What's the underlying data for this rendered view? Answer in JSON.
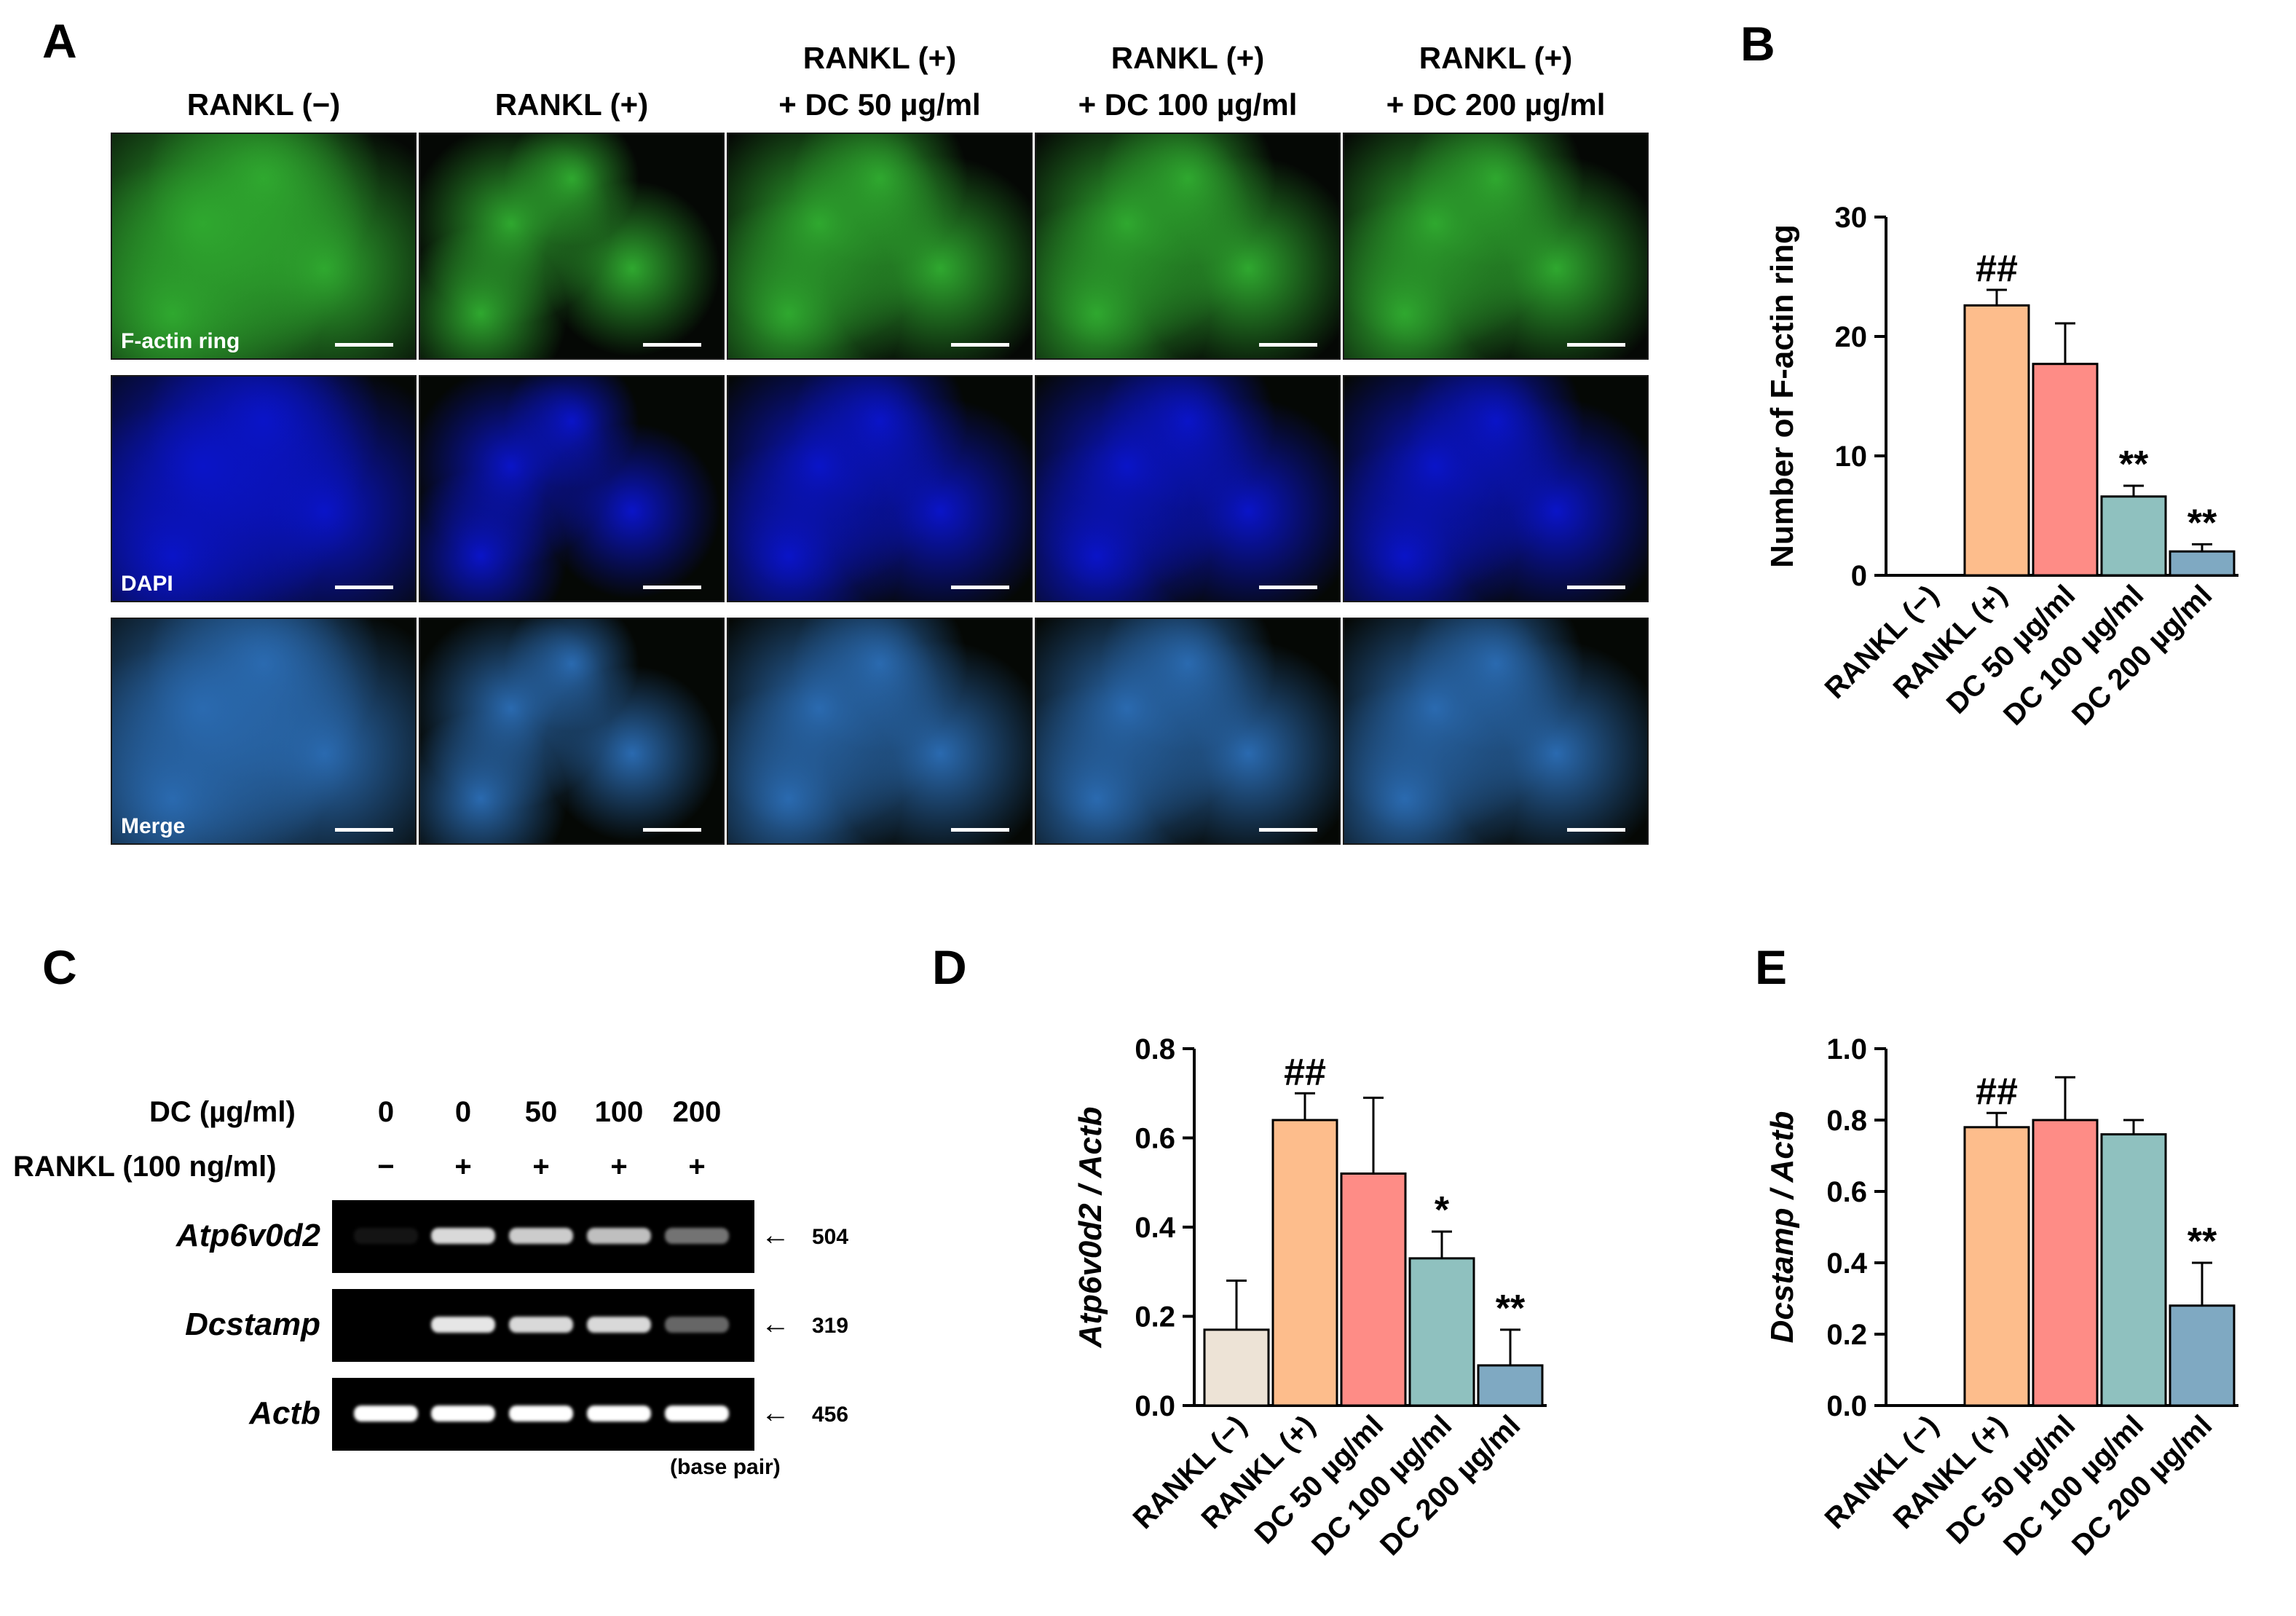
{
  "panel_letters": {
    "a": "A",
    "b": "B",
    "c": "C",
    "d": "D",
    "e": "E"
  },
  "panel_a": {
    "columns": [
      {
        "line1": "",
        "line2": "RANKL (−)"
      },
      {
        "line1": "",
        "line2": "RANKL (+)"
      },
      {
        "line1": "RANKL (+)",
        "line2": "+ DC 50 µg/ml"
      },
      {
        "line1": "RANKL (+)",
        "line2": "+ DC 100 µg/ml"
      },
      {
        "line1": "RANKL (+)",
        "line2": "+ DC 200 µg/ml"
      }
    ],
    "rows": [
      {
        "label": "F-actin ring",
        "color": "#2fa82f"
      },
      {
        "label": "DAPI",
        "color": "#0a14c8"
      },
      {
        "label": "Merge",
        "color": "#2a6ab0"
      }
    ]
  },
  "panel_c": {
    "dc_label": "DC (µg/ml)",
    "rankl_label": "RANKL (100 ng/ml)",
    "dc_values": [
      "0",
      "0",
      "50",
      "100",
      "200"
    ],
    "rankl_values": [
      "−",
      "+",
      "+",
      "+",
      "+"
    ],
    "genes": [
      {
        "name": "Atp6v0d2",
        "bp": "504",
        "intensities": [
          0.08,
          0.85,
          0.8,
          0.75,
          0.45
        ]
      },
      {
        "name": "Dcstamp",
        "bp": "319",
        "intensities": [
          0.0,
          0.9,
          0.85,
          0.85,
          0.4
        ]
      },
      {
        "name": "Actb",
        "bp": "456",
        "intensities": [
          1.0,
          1.0,
          1.0,
          1.0,
          1.0
        ]
      }
    ],
    "base_pair_note": "(base pair)"
  },
  "chart_data": [
    {
      "panel": "B",
      "type": "bar",
      "ylabel": "Number of F-actin ring",
      "categories": [
        "RANKL (−)",
        "RANKL (+)",
        "DC 50 µg/ml",
        "DC 100 µg/ml",
        "DC 200 µg/ml"
      ],
      "values": [
        0,
        22.6,
        17.7,
        6.6,
        2.0
      ],
      "errors": [
        0,
        1.3,
        3.4,
        0.9,
        0.6
      ],
      "annotations": [
        "",
        "##",
        "",
        "**",
        "**"
      ],
      "colors": [
        "#ede3d6",
        "#fdbd8c",
        "#fe8c86",
        "#8fc1bf",
        "#7fa9c2"
      ],
      "ylim": [
        0,
        30
      ],
      "yticks": [
        "0",
        "10",
        "20",
        "30"
      ],
      "ytick_values": [
        0,
        10,
        20,
        30
      ]
    },
    {
      "panel": "D",
      "type": "bar",
      "ylabel": "Atp6v0d2 / Actb",
      "categories": [
        "RANKL (−)",
        "RANKL (+)",
        "DC 50 µg/ml",
        "DC 100 µg/ml",
        "DC 200 µg/ml"
      ],
      "values": [
        0.17,
        0.64,
        0.52,
        0.33,
        0.09
      ],
      "errors": [
        0.11,
        0.06,
        0.17,
        0.06,
        0.08
      ],
      "annotations": [
        "",
        "##",
        "",
        "*",
        "**"
      ],
      "colors": [
        "#ede3d6",
        "#fdbd8c",
        "#fe8c86",
        "#8fc1bf",
        "#7fa9c2"
      ],
      "ylim": [
        0,
        0.8
      ],
      "yticks": [
        "0.0",
        "0.2",
        "0.4",
        "0.6",
        "0.8"
      ],
      "ytick_values": [
        0,
        0.2,
        0.4,
        0.6,
        0.8
      ]
    },
    {
      "panel": "E",
      "type": "bar",
      "ylabel": "Dcstamp / Actb",
      "categories": [
        "RANKL (−)",
        "RANKL (+)",
        "DC 50 µg/ml",
        "DC 100 µg/ml",
        "DC 200 µg/ml"
      ],
      "values": [
        0,
        0.78,
        0.8,
        0.76,
        0.28
      ],
      "errors": [
        0,
        0.04,
        0.12,
        0.04,
        0.12
      ],
      "annotations": [
        "",
        "##",
        "",
        "",
        "**"
      ],
      "colors": [
        "#ede3d6",
        "#fdbd8c",
        "#fe8c86",
        "#8fc1bf",
        "#7fa9c2"
      ],
      "ylim": [
        0,
        1.0
      ],
      "yticks": [
        "0.0",
        "0.2",
        "0.4",
        "0.6",
        "0.8",
        "1.0"
      ],
      "ytick_values": [
        0,
        0.2,
        0.4,
        0.6,
        0.8,
        1.0
      ]
    }
  ]
}
